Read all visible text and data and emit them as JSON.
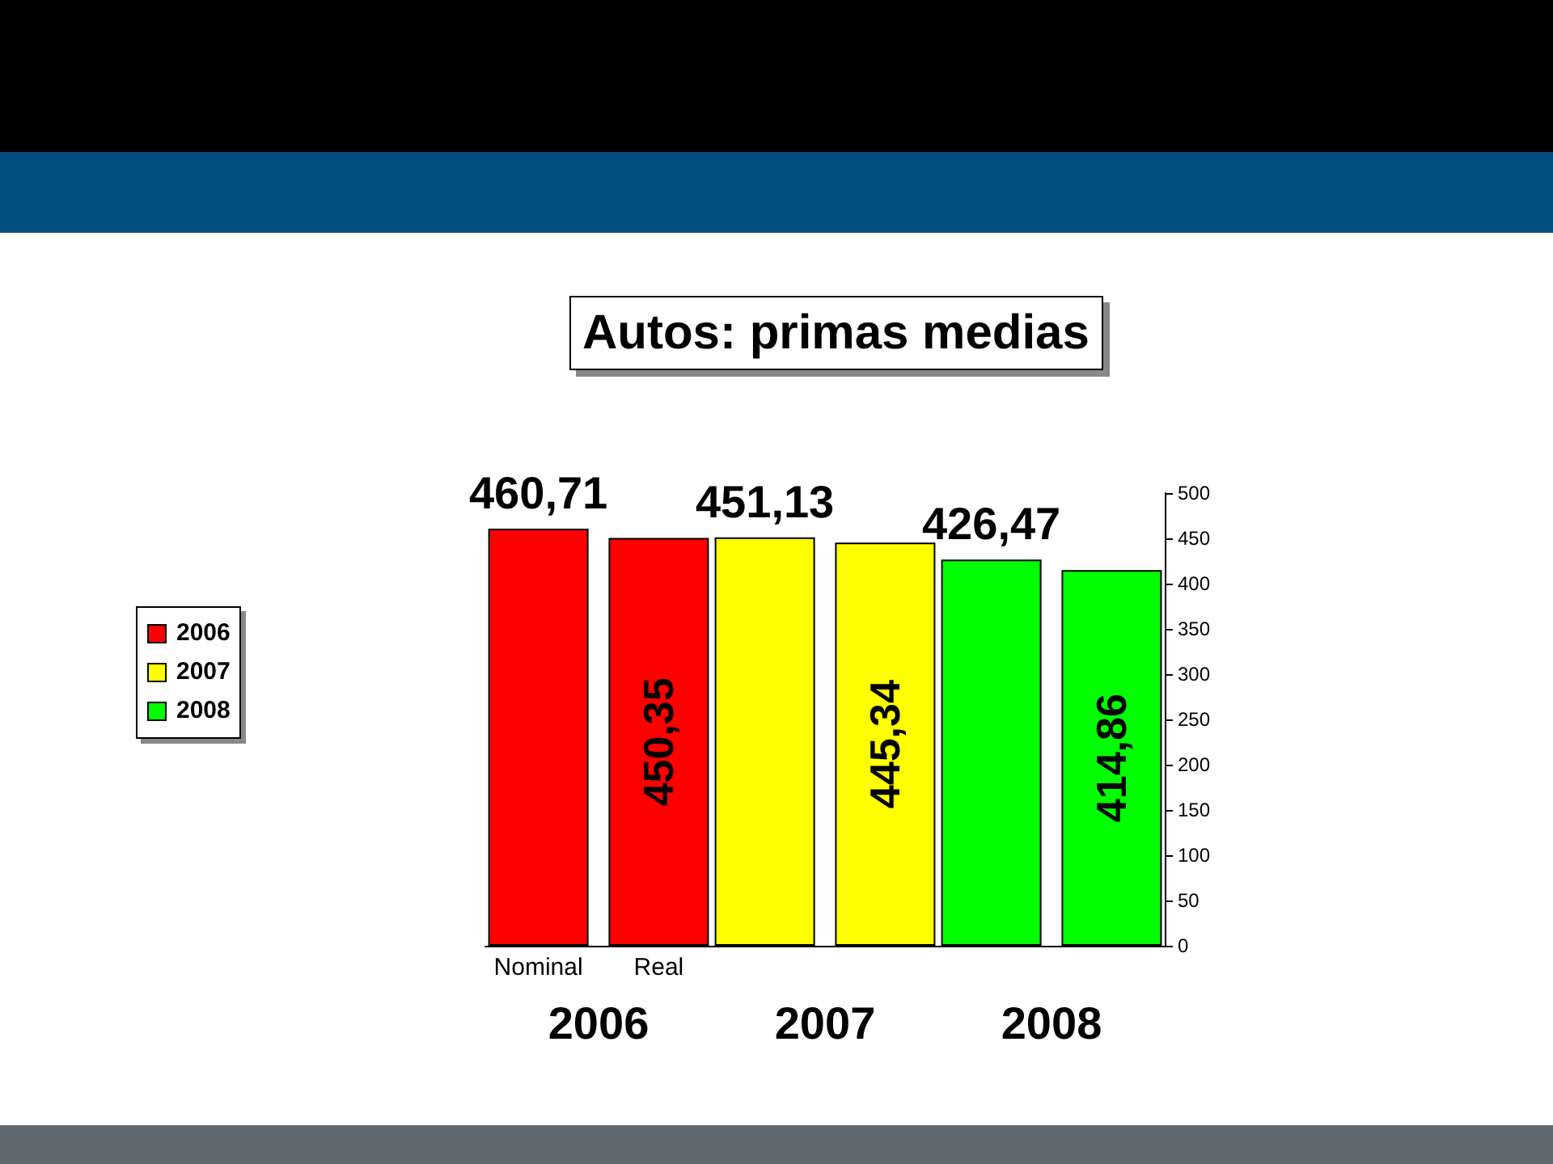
{
  "chart_data": {
    "type": "bar",
    "title": "Autos: primas medias",
    "categories": [
      "2006",
      "2007",
      "2008"
    ],
    "series": [
      {
        "name": "Nominal",
        "colors": [
          "#ff0000",
          "#ffff00",
          "#00ff00"
        ],
        "values": [
          460.71,
          451.13,
          426.47
        ],
        "value_labels": [
          "460,71",
          "451,13",
          "426,47"
        ]
      },
      {
        "name": "Real",
        "colors": [
          "#ff0000",
          "#ffff00",
          "#00ff00"
        ],
        "values": [
          450.35,
          445.34,
          414.86
        ],
        "value_labels": [
          "450,35",
          "445,34",
          "414,86"
        ]
      }
    ],
    "ylim": [
      0,
      500
    ],
    "yticks": [
      0,
      50,
      100,
      150,
      200,
      250,
      300,
      350,
      400,
      450,
      500
    ],
    "grid": false,
    "legend": "left"
  }
}
